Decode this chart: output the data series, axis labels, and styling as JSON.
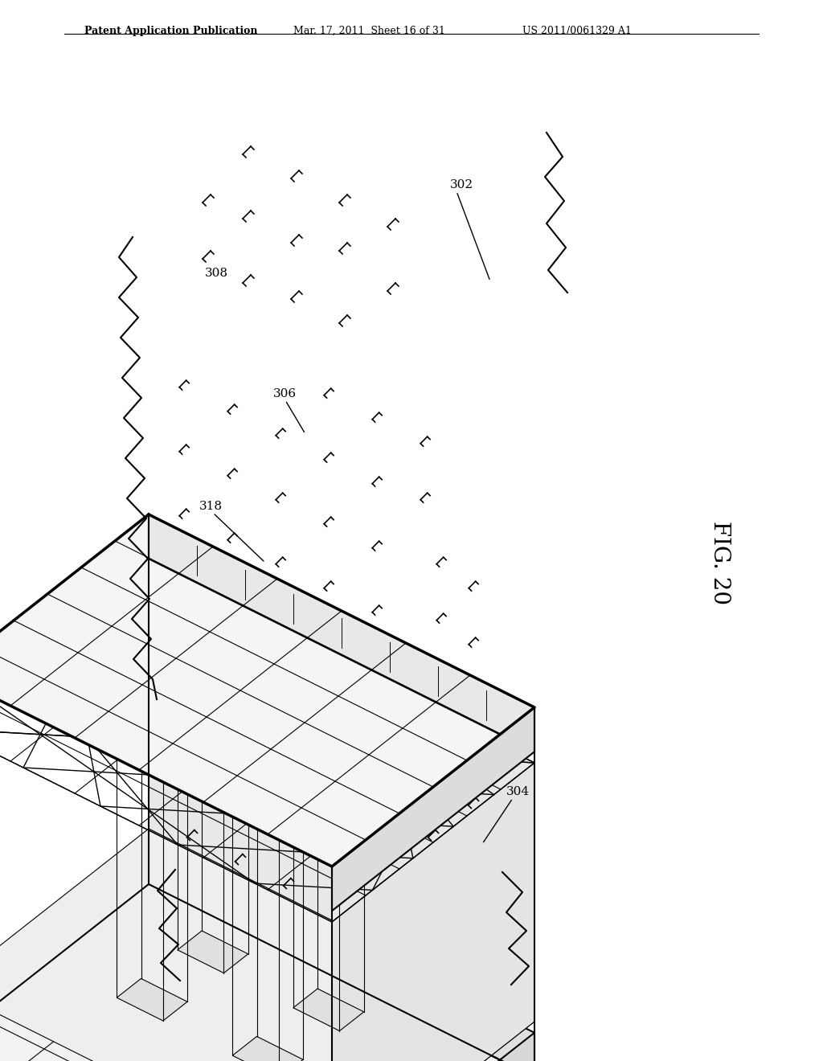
{
  "title_line1": "Patent Application Publication",
  "title_line2": "Mar. 17, 2011  Sheet 16 of 31",
  "title_line3": "US 2011/0061329 A1",
  "fig_label": "FIG. 20",
  "ref_302": "302",
  "ref_304": "304",
  "ref_306": "306",
  "ref_308": "308",
  "ref_318": "318",
  "bg_color": "#ffffff",
  "line_color": "#000000",
  "lw_thick": 2.5,
  "lw_medium": 1.5,
  "lw_thin": 0.8
}
